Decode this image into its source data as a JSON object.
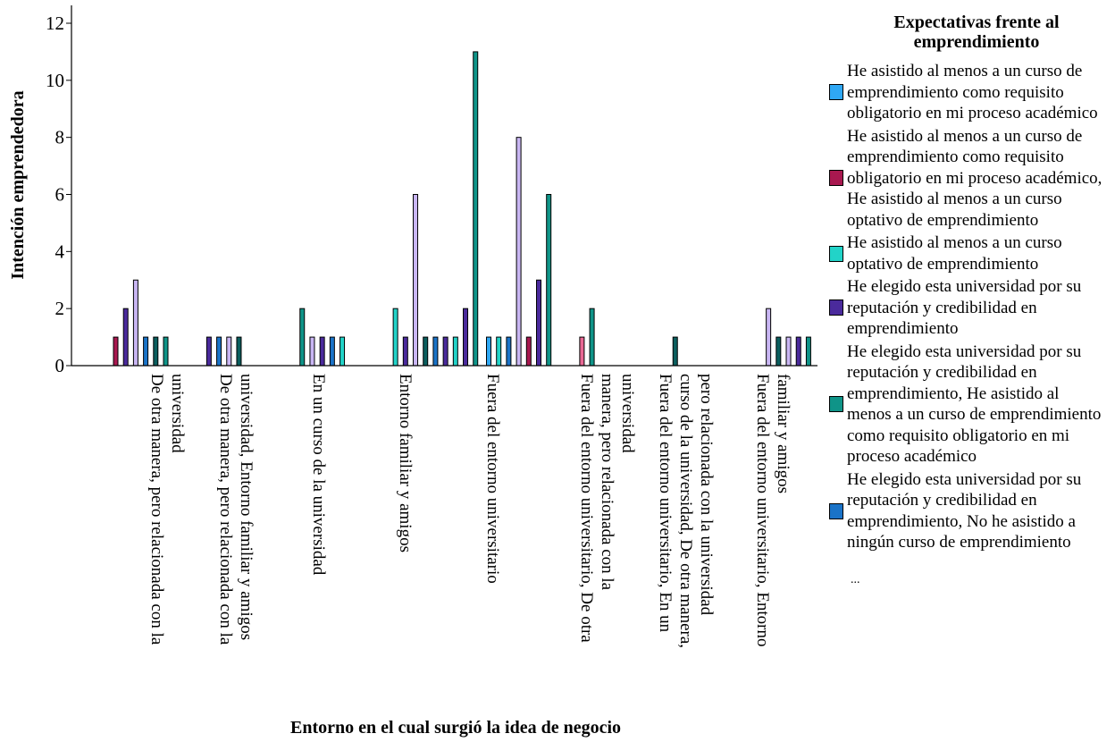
{
  "chart_data": {
    "type": "bar",
    "xlabel": "Entorno en el cual surgió la idea de negocio",
    "ylabel": "Intención emprendedora",
    "ylim": [
      0,
      12
    ],
    "yticks": [
      0,
      2,
      4,
      6,
      8,
      10,
      12
    ],
    "grid": false,
    "legend_position": "right",
    "legend_title": "Expectativas frente al emprendimiento",
    "legend_more": "...",
    "categories": [
      "De otra manera, pero relacionada con la universidad",
      "De otra manera, pero relacionada con la universidad, Entorno familiar y amigos",
      "En un curso de la universidad",
      "Entorno familiar y amigos",
      "Fuera del entorno universitario",
      "Fuera del entorno universitario, De otra manera, pero relacionada con la universidad",
      "Fuera del entorno universitario, En un curso de la universidad, De otra manera, pero relacionada con la universidad",
      "Fuera del entorno universitario, Entorno familiar y amigos"
    ],
    "category_label_lines": [
      [
        "De otra manera, pero relacionada con la",
        "universidad"
      ],
      [
        "De otra manera, pero relacionada con la",
        "universidad, Entorno familiar y amigos"
      ],
      [
        "En un curso de la universidad"
      ],
      [
        "Entorno familiar y amigos"
      ],
      [
        "Fuera del entorno universitario"
      ],
      [
        "Fuera del entorno universitario, De otra",
        "manera, pero relacionada con la",
        "universidad"
      ],
      [
        "Fuera del entorno universitario, En un",
        "curso de la universidad, De otra manera,",
        "pero relacionada con la universidad"
      ],
      [
        "Fuera del entorno universitario, Entorno",
        "familiar y amigos"
      ]
    ],
    "series": [
      {
        "name": "He asistido al menos a un curso de emprendimiento como requisito obligatorio en mi proceso académico",
        "color": "#2fa8f5",
        "in_legend": true
      },
      {
        "name": "He asistido al menos a un curso de emprendimiento como requisito obligatorio en mi proceso académico, He asistido al menos a un curso optativo de emprendimiento",
        "color": "#a8184f",
        "in_legend": true
      },
      {
        "name": "He asistido al menos a un curso optativo de emprendimiento",
        "color": "#22d3c8",
        "in_legend": true
      },
      {
        "name": "He elegido esta universidad por su reputación y credibilidad en emprendimiento",
        "color": "#4a2a9c",
        "in_legend": true
      },
      {
        "name": "He elegido esta universidad por su reputación y credibilidad en emprendimiento, He asistido al menos a un curso de emprendimiento como requisito obligatorio en mi proceso académico",
        "color": "#0f9488",
        "in_legend": true
      },
      {
        "name": "He elegido esta universidad por su reputación y credibilidad en emprendimiento, No he asistido a ningún curso de emprendimiento",
        "color": "#1a73c8",
        "in_legend": true
      },
      {
        "color": "#c9b6f3",
        "in_legend": false
      },
      {
        "color": "#e86894",
        "in_legend": false
      },
      {
        "color": "#0b5e5e",
        "in_legend": false
      }
    ],
    "bars": [
      {
        "category": 0,
        "series": 1,
        "value": 1
      },
      {
        "category": 0,
        "series": 3,
        "value": 2
      },
      {
        "category": 0,
        "series": 6,
        "value": 3
      },
      {
        "category": 0,
        "series": 5,
        "value": 1
      },
      {
        "category": 0,
        "series": 8,
        "value": 1
      },
      {
        "category": 0,
        "series": 4,
        "value": 1
      },
      {
        "category": 1,
        "series": 3,
        "value": 1
      },
      {
        "category": 1,
        "series": 5,
        "value": 1
      },
      {
        "category": 1,
        "series": 6,
        "value": 1
      },
      {
        "category": 1,
        "series": 8,
        "value": 1
      },
      {
        "category": 2,
        "series": 4,
        "value": 2
      },
      {
        "category": 2,
        "series": 6,
        "value": 1
      },
      {
        "category": 2,
        "series": 3,
        "value": 1
      },
      {
        "category": 2,
        "series": 5,
        "value": 1
      },
      {
        "category": 2,
        "series": 2,
        "value": 1
      },
      {
        "category": 3,
        "series": 2,
        "value": 2
      },
      {
        "category": 3,
        "series": 3,
        "value": 1
      },
      {
        "category": 3,
        "series": 6,
        "value": 6
      },
      {
        "category": 3,
        "series": 8,
        "value": 1
      },
      {
        "category": 3,
        "series": 5,
        "value": 1
      },
      {
        "category": 3,
        "series": 3,
        "value": 1
      },
      {
        "category": 3,
        "series": 2,
        "value": 1
      },
      {
        "category": 3,
        "series": 3,
        "value": 2
      },
      {
        "category": 3,
        "series": 4,
        "value": 11
      },
      {
        "category": 4,
        "series": 0,
        "value": 1
      },
      {
        "category": 4,
        "series": 2,
        "value": 1
      },
      {
        "category": 4,
        "series": 5,
        "value": 1
      },
      {
        "category": 4,
        "series": 6,
        "value": 8
      },
      {
        "category": 4,
        "series": 1,
        "value": 1
      },
      {
        "category": 4,
        "series": 3,
        "value": 3
      },
      {
        "category": 4,
        "series": 4,
        "value": 6
      },
      {
        "category": 5,
        "series": 7,
        "value": 1
      },
      {
        "category": 5,
        "series": 4,
        "value": 2
      },
      {
        "category": 6,
        "series": 8,
        "value": 1
      },
      {
        "category": 7,
        "series": 6,
        "value": 2
      },
      {
        "category": 7,
        "series": 8,
        "value": 1
      },
      {
        "category": 7,
        "series": 6,
        "value": 1
      },
      {
        "category": 7,
        "series": 3,
        "value": 1
      },
      {
        "category": 7,
        "series": 4,
        "value": 1
      }
    ]
  }
}
